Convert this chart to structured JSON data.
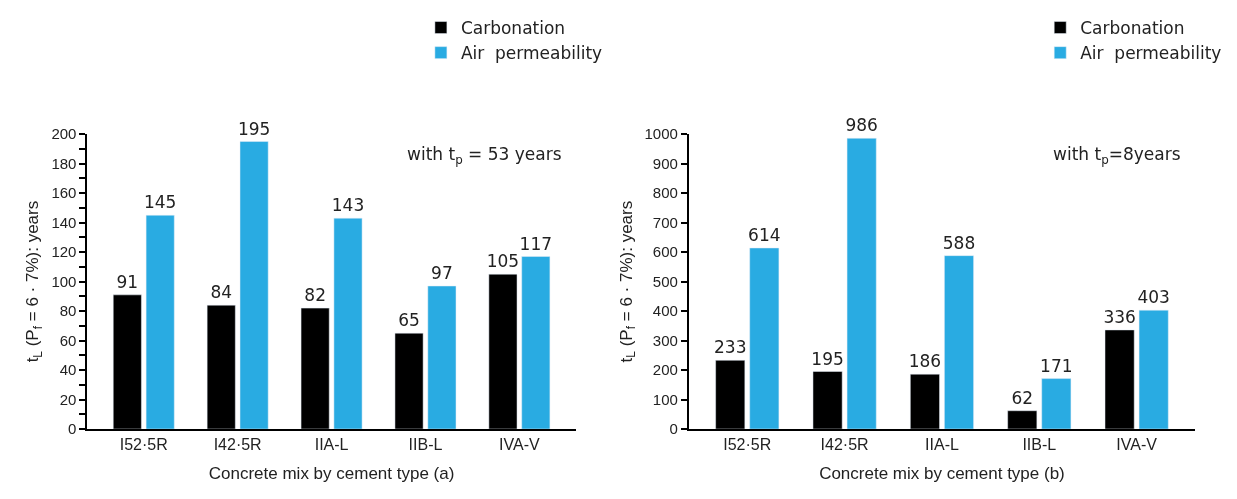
{
  "chart_data": [
    {
      "type": "bar",
      "xlabel": "Concrete mix by cement type (a)",
      "ylabel": "t$_{L}$ (P$_{f}$ = 6 · 7%): years",
      "categories": [
        "I52·5R",
        "I42·5R",
        "IIA-L",
        "IIB-L",
        "IVA-V"
      ],
      "series": [
        {
          "name": "Carbonation",
          "color": "#000000",
          "values": [
            91,
            84,
            82,
            65,
            105
          ]
        },
        {
          "name": "Air  permeability",
          "color": "#29abe2",
          "values": [
            145,
            195,
            143,
            97,
            117
          ]
        }
      ],
      "ylim": [
        0,
        200
      ],
      "yticks": [
        0,
        {
          "value": 10,
          "label": null
        },
        20,
        {
          "value": 30,
          "label": null
        },
        40,
        {
          "value": 50,
          "label": null
        },
        60,
        {
          "value": 70,
          "label": null
        },
        80,
        {
          "value": 90,
          "label": null
        },
        100,
        {
          "value": 110,
          "label": null
        },
        120,
        {
          "value": 130,
          "label": null
        },
        140,
        {
          "value": 150,
          "label": null
        },
        160,
        {
          "value": 170,
          "label": null
        },
        180,
        {
          "value": 190,
          "label": null
        },
        200
      ],
      "data_labels": true,
      "legend": "top right",
      "annotations": [
        "with t$_{p}$ = 53 years"
      ]
    },
    {
      "type": "bar",
      "xlabel": "Concrete mix by cement type (b)",
      "ylabel": "t$_{L}$ (P$_{f}$ = 6 · 7%): years",
      "categories": [
        "I52·5R",
        "I42·5R",
        "IIA-L",
        "IIB-L",
        "IVA-V"
      ],
      "series": [
        {
          "name": "Carbonation",
          "color": "#000000",
          "values": [
            233,
            195,
            186,
            62,
            336
          ]
        },
        {
          "name": "Air  permeability",
          "color": "#29abe2",
          "values": [
            614,
            986,
            588,
            171,
            403
          ]
        }
      ],
      "ylim": [
        0,
        1000
      ],
      "yticks": [
        0,
        100,
        200,
        300,
        400,
        500,
        600,
        700,
        800,
        900,
        1000
      ],
      "data_labels": true,
      "legend": "top right",
      "annotations": [
        "with t$_{p}$=8years"
      ]
    }
  ]
}
